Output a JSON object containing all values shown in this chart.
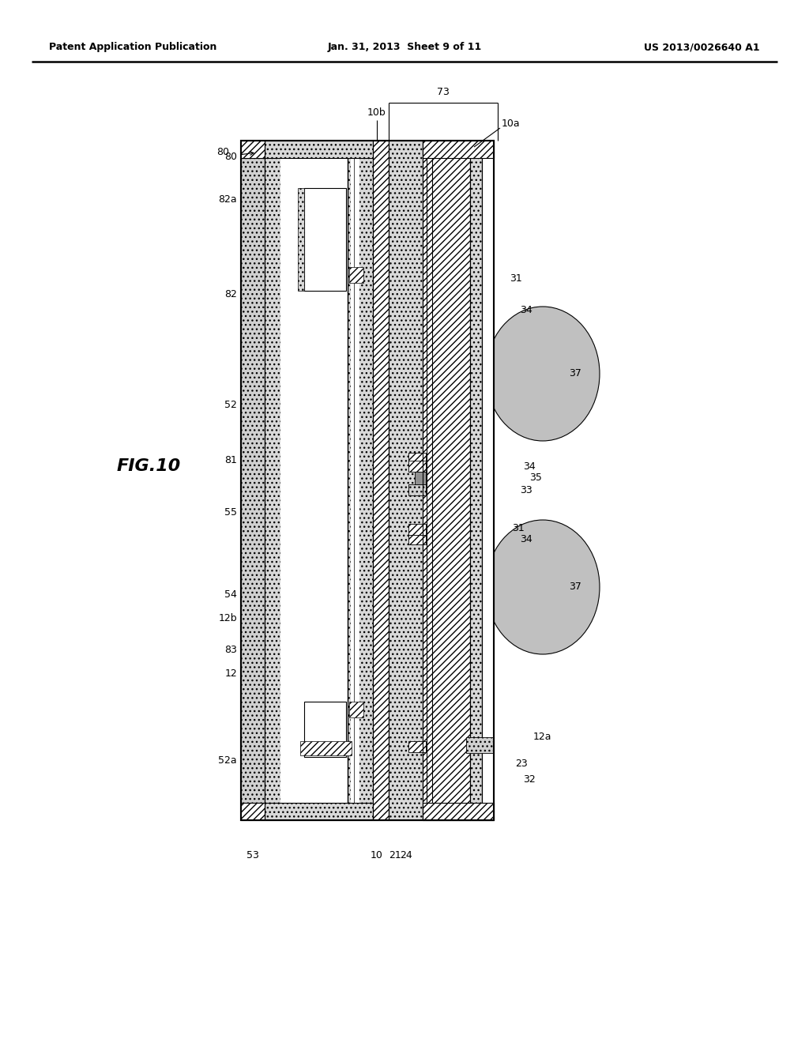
{
  "header_left": "Patent Application Publication",
  "header_center": "Jan. 31, 2013  Sheet 9 of 11",
  "header_right": "US 2013/0026640 A1",
  "fig_label": "FIG.10",
  "bg": "#ffffff"
}
